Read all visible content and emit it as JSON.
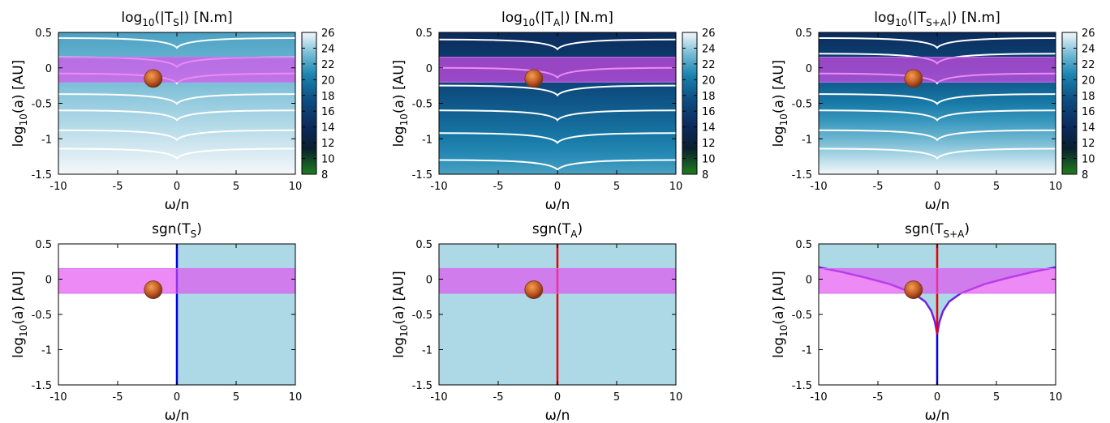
{
  "figure": {
    "colors": {
      "axis": "#000000",
      "contour": "#ffffff",
      "band_fill": "#e44cf0",
      "band_edge": "#d070f0",
      "negative_region": "#add8e6",
      "positive_region": "#ffffff",
      "sign_line_blue": "#0000dd",
      "sign_line_red": "#ee0000",
      "sign_line_purple": "#7020e0",
      "planet": "#c8602a"
    },
    "colormap": [
      "#1e7d1e",
      "#0a1f2e",
      "#0b2a5a",
      "#0d4c80",
      "#1a84b0",
      "#7ec0d8",
      "#f5f8fa"
    ]
  },
  "chart_data": [
    {
      "type": "heatmap",
      "title_base": "log",
      "title_sub": "10",
      "title_mid": "(|T",
      "title_tsub": "S",
      "title_end": "|) [N.m]",
      "xlabel": "ω/n",
      "ylabel_base": "log",
      "ylabel_sub": "10",
      "ylabel_end": "(a) [AU]",
      "xlim": [
        -10,
        10
      ],
      "ylim": [
        -1.5,
        0.5
      ],
      "xticks": [
        "-10",
        "-5",
        "0",
        "5",
        "10"
      ],
      "yticks": [
        "0.5",
        "0",
        "-0.5",
        "-1",
        "-1.5"
      ],
      "colorbar": {
        "range": [
          8,
          26
        ],
        "ticks": [
          "26",
          "24",
          "22",
          "20",
          "18",
          "16",
          "14",
          "12",
          "10",
          "8"
        ]
      },
      "field": {
        "vertical_gradient": true,
        "surface_value": 22,
        "deep_value": 26
      },
      "contour_levels_y": [
        0.42,
        0.15,
        -0.08,
        -0.37,
        -0.6,
        -0.88,
        -1.14
      ],
      "habitable_band": [
        -0.2,
        0.15
      ],
      "planet": {
        "x": -2,
        "y": -0.15
      }
    },
    {
      "type": "heatmap",
      "title_base": "log",
      "title_sub": "10",
      "title_mid": "(|T",
      "title_tsub": "A",
      "title_end": "|) [N.m]",
      "xlabel": "ω/n",
      "ylabel_base": "log",
      "ylabel_sub": "10",
      "ylabel_end": "(a) [AU]",
      "xlim": [
        -10,
        10
      ],
      "ylim": [
        -1.5,
        0.5
      ],
      "xticks": [
        "-10",
        "-5",
        "0",
        "5",
        "10"
      ],
      "yticks": [
        "0.5",
        "0",
        "-0.5",
        "-1",
        "-1.5"
      ],
      "colorbar": {
        "range": [
          8,
          26
        ],
        "ticks": [
          "26",
          "24",
          "22",
          "20",
          "18",
          "16",
          "14",
          "12",
          "10",
          "8"
        ]
      },
      "field": {
        "vertical_gradient": true,
        "surface_value": 14,
        "deep_value": 22
      },
      "contour_levels_y": [
        0.4,
        0.0,
        -0.25,
        -0.6,
        -0.92,
        -1.3
      ],
      "habitable_band": [
        -0.2,
        0.15
      ],
      "planet": {
        "x": -2,
        "y": -0.15
      }
    },
    {
      "type": "heatmap",
      "title_base": "log",
      "title_sub": "10",
      "title_mid": "(|T",
      "title_tsub": "S+A",
      "title_end": "|) [N.m]",
      "xlabel": "ω/n",
      "ylabel_base": "log",
      "ylabel_sub": "10",
      "ylabel_end": "(a) [AU]",
      "xlim": [
        -10,
        10
      ],
      "ylim": [
        -1.5,
        0.5
      ],
      "xticks": [
        "-10",
        "-5",
        "0",
        "5",
        "10"
      ],
      "yticks": [
        "0.5",
        "0",
        "-0.5",
        "-1",
        "-1.5"
      ],
      "colorbar": {
        "range": [
          8,
          26
        ],
        "ticks": [
          "26",
          "24",
          "22",
          "20",
          "18",
          "16",
          "14",
          "12",
          "10",
          "8"
        ]
      },
      "field": {
        "vertical_gradient": true,
        "surface_value": 14,
        "deep_value": 26
      },
      "contour_levels_y": [
        0.42,
        0.2,
        -0.08,
        -0.37,
        -0.6,
        -0.88,
        -1.14
      ],
      "habitable_band": [
        -0.2,
        0.15
      ],
      "planet": {
        "x": -2,
        "y": -0.15
      }
    },
    {
      "type": "area",
      "title_base": "sgn(T",
      "title_tsub": "S",
      "title_end": ")",
      "xlabel": "ω/n",
      "ylabel_base": "log",
      "ylabel_sub": "10",
      "ylabel_end": "(a) [AU]",
      "xlim": [
        -10,
        10
      ],
      "ylim": [
        -1.5,
        0.5
      ],
      "xticks": [
        "-10",
        "-5",
        "0",
        "5",
        "10"
      ],
      "yticks": [
        "0.5",
        "0",
        "-0.5",
        "-1",
        "-1.5"
      ],
      "sign_boundary": {
        "kind": "vertical",
        "x": 0,
        "color": "#0000dd"
      },
      "negative_side": "right",
      "habitable_band": [
        -0.2,
        0.15
      ],
      "planet": {
        "x": -2,
        "y": -0.15
      }
    },
    {
      "type": "area",
      "title_base": "sgn(T",
      "title_tsub": "A",
      "title_end": ")",
      "xlabel": "ω/n",
      "ylabel_base": "log",
      "ylabel_sub": "10",
      "ylabel_end": "(a) [AU]",
      "xlim": [
        -10,
        10
      ],
      "ylim": [
        -1.5,
        0.5
      ],
      "xticks": [
        "-10",
        "-5",
        "0",
        "5",
        "10"
      ],
      "yticks": [
        "0.5",
        "0",
        "-0.5",
        "-1",
        "-1.5"
      ],
      "sign_boundary": {
        "kind": "vertical",
        "x": 0,
        "color": "#ee0000"
      },
      "negative_side": "both",
      "habitable_band": [
        -0.2,
        0.15
      ],
      "planet": {
        "x": -2,
        "y": -0.15
      }
    },
    {
      "type": "area",
      "title_base": "sgn(T",
      "title_tsub": "S+A",
      "title_end": ")",
      "xlabel": "ω/n",
      "ylabel_base": "log",
      "ylabel_sub": "10",
      "ylabel_end": "(a) [AU]",
      "xlim": [
        -10,
        10
      ],
      "ylim": [
        -1.5,
        0.5
      ],
      "xticks": [
        "-10",
        "-5",
        "0",
        "5",
        "10"
      ],
      "yticks": [
        "0.5",
        "0",
        "-0.5",
        "-1",
        "-1.5"
      ],
      "sign_boundary": {
        "kind": "curve",
        "x": [
          -10,
          -8,
          -6,
          -4,
          -2,
          -1,
          -0.5,
          -0.2,
          0,
          0.2,
          0.5,
          1,
          2,
          4,
          6,
          8,
          10
        ],
        "y": [
          0.17,
          0.1,
          0.02,
          -0.07,
          -0.2,
          -0.32,
          -0.45,
          -0.6,
          -0.78,
          -0.6,
          -0.45,
          -0.32,
          -0.2,
          -0.07,
          0.02,
          0.1,
          0.17
        ],
        "color": "#7020e0",
        "upper_line_color": "#ee0000",
        "lower_line_color": "#0000dd"
      },
      "negative_side": "above-curve",
      "habitable_band": [
        -0.2,
        0.15
      ],
      "planet": {
        "x": -2,
        "y": -0.15
      }
    }
  ]
}
